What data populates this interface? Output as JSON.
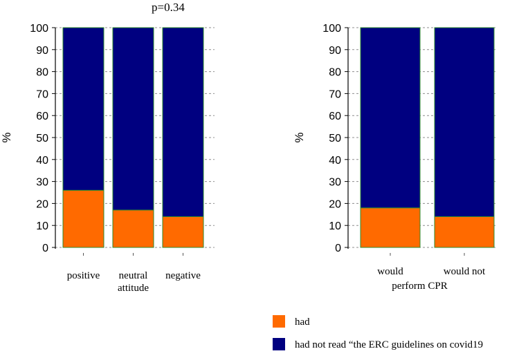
{
  "chart_data": [
    {
      "type": "bar",
      "stacked": true,
      "annotation": "p=0.34",
      "ylabel": "%",
      "ylim": [
        0,
        100
      ],
      "yticks": [
        0,
        10,
        20,
        30,
        40,
        50,
        60,
        70,
        80,
        90,
        100
      ],
      "categories": [
        "positive",
        "neutral attitude",
        "negative"
      ],
      "category_lines": [
        [
          "positive"
        ],
        [
          "neutral",
          "attitude"
        ],
        [
          "negative"
        ]
      ],
      "group_label": "",
      "series": [
        {
          "name": "had",
          "color": "#ff6a00",
          "values": [
            26,
            17,
            14
          ]
        },
        {
          "name": "had not read “the ERC guidelines on covid19",
          "color": "#000080",
          "values": [
            74,
            83,
            86
          ]
        }
      ],
      "grid": "horizontal dashed"
    },
    {
      "type": "bar",
      "stacked": true,
      "annotation": "",
      "ylabel": "%",
      "ylim": [
        0,
        100
      ],
      "yticks": [
        0,
        10,
        20,
        30,
        40,
        50,
        60,
        70,
        80,
        90,
        100
      ],
      "categories": [
        "would",
        "would not"
      ],
      "category_lines": [
        [
          "would"
        ],
        [
          "would not"
        ]
      ],
      "group_label": "perform CPR",
      "series": [
        {
          "name": "had",
          "color": "#ff6a00",
          "values": [
            18,
            14
          ]
        },
        {
          "name": "had not read “the ERC guidelines on covid19",
          "color": "#000080",
          "values": [
            82,
            86
          ]
        }
      ],
      "grid": "horizontal dashed"
    }
  ],
  "legend": {
    "position": "bottom",
    "items": [
      {
        "label": "had",
        "color": "#ff6a00"
      },
      {
        "label": "had not read “the ERC guidelines on covid19",
        "color": "#000080"
      }
    ]
  }
}
